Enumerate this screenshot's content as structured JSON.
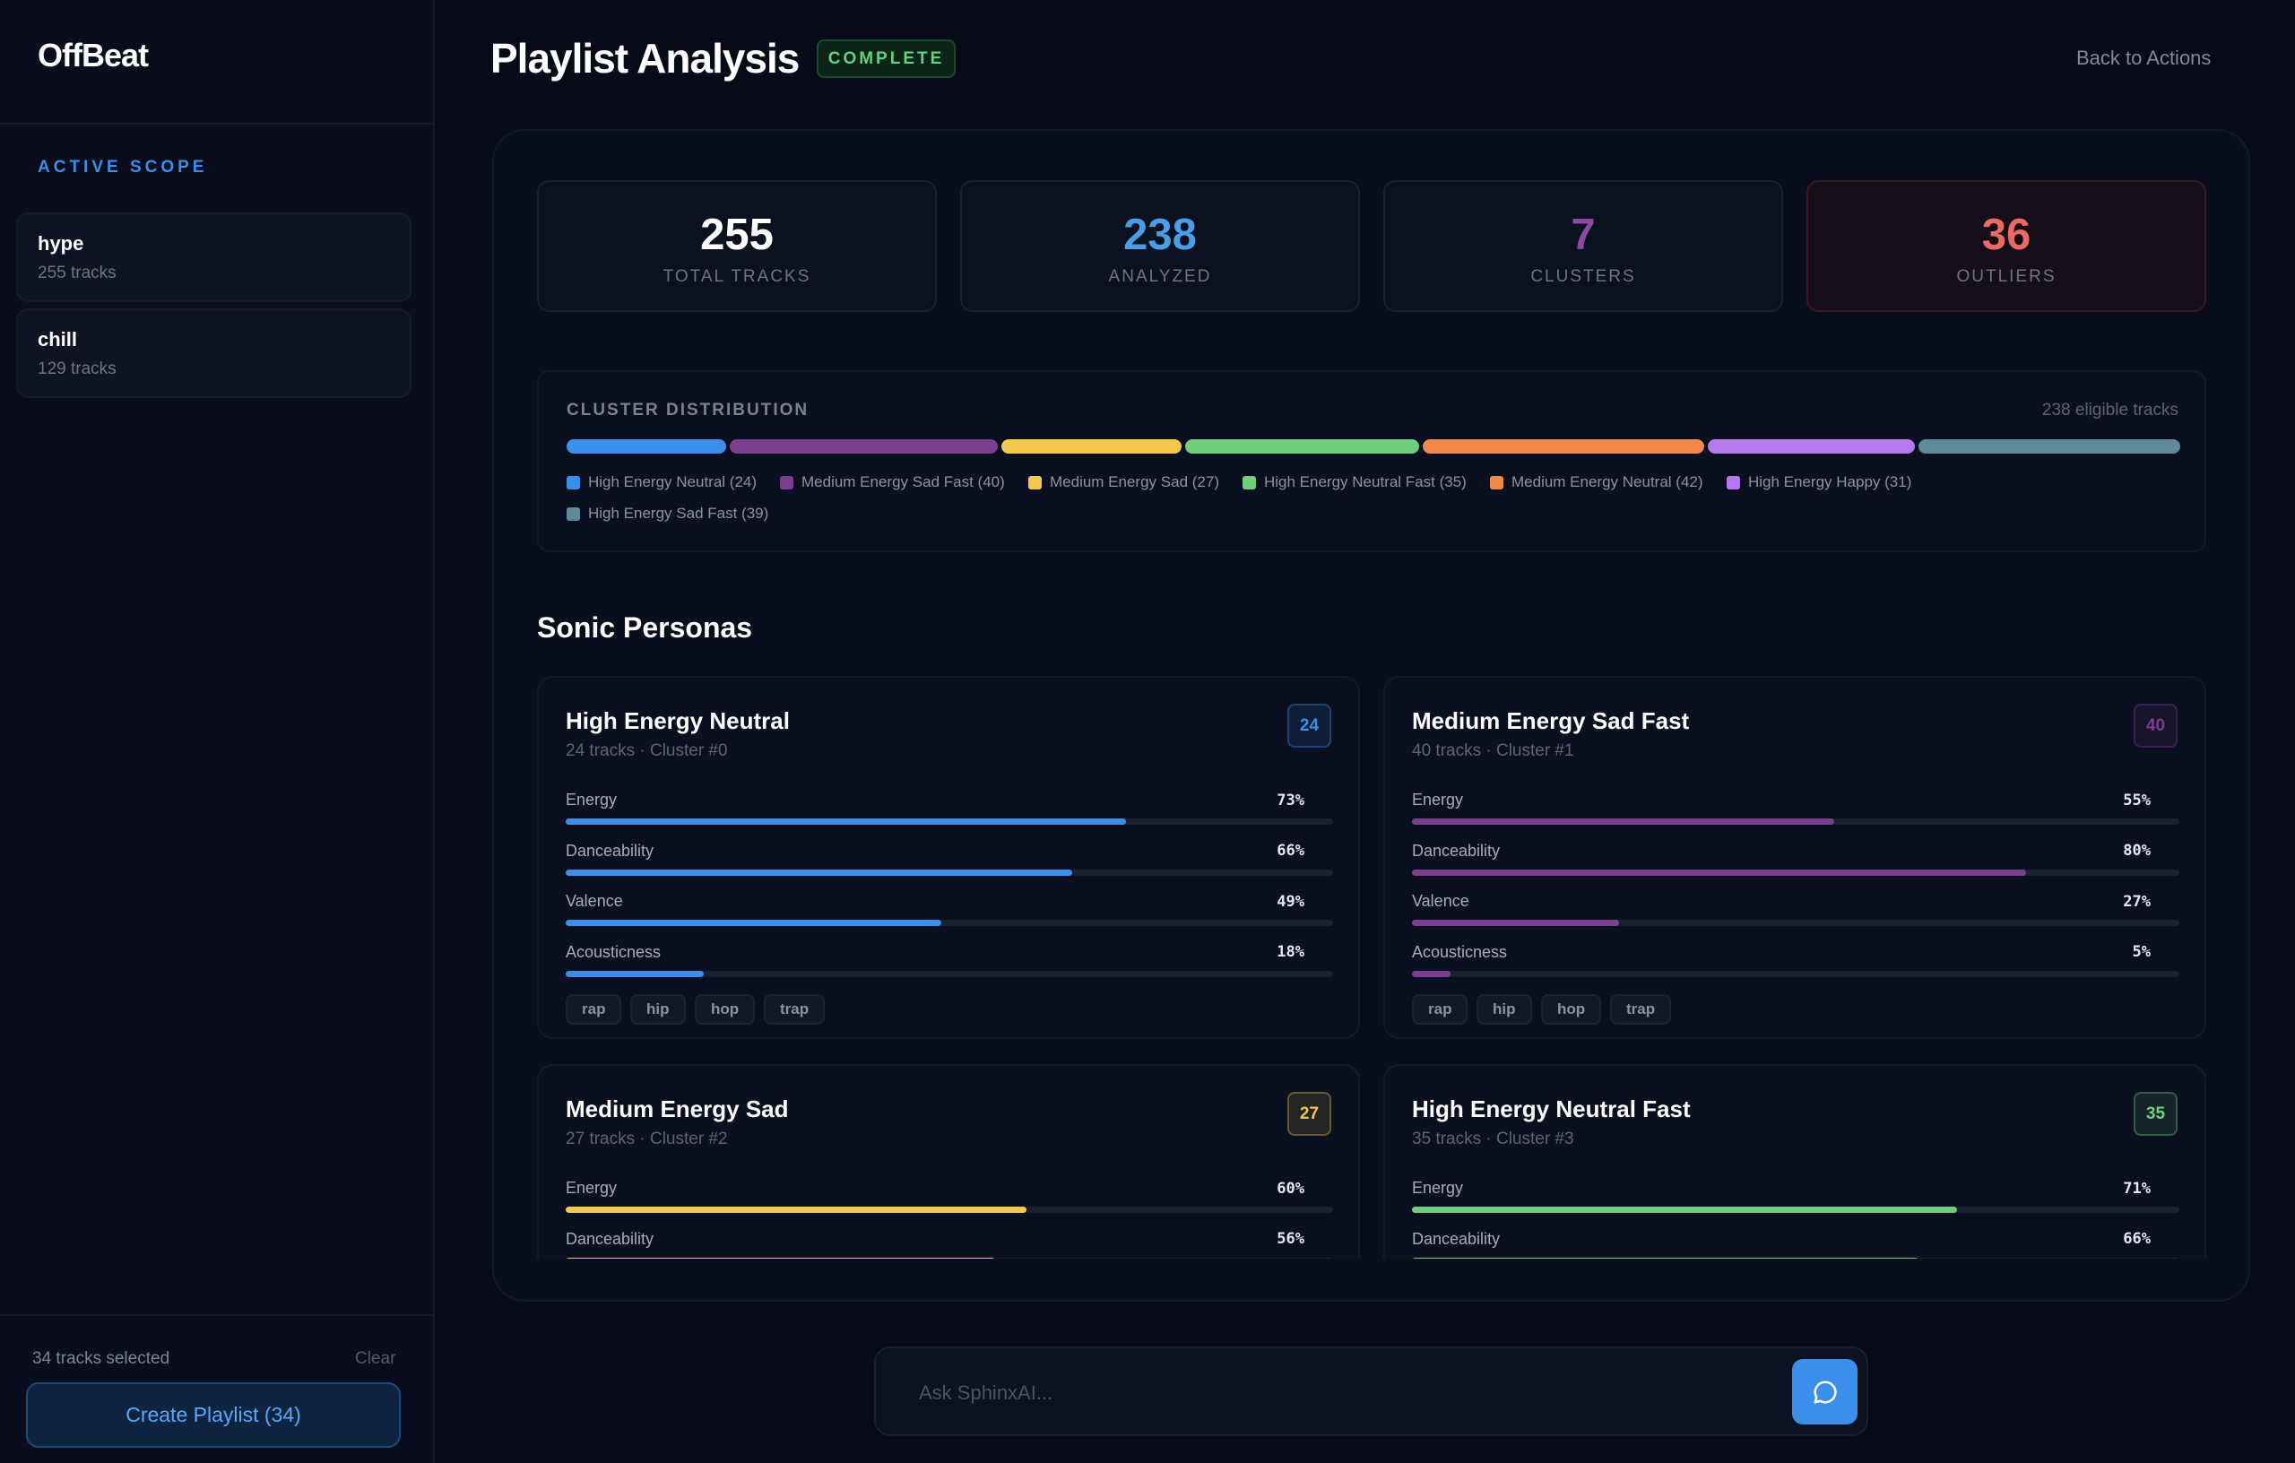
{
  "sidebar": {
    "brand": "OffBeat",
    "scope_label": "ACTIVE SCOPE",
    "scopes": [
      {
        "name": "hype",
        "tracks": "255 tracks"
      },
      {
        "name": "chill",
        "tracks": "129 tracks"
      }
    ],
    "selected": "34 tracks selected",
    "clear": "Clear",
    "create_button": "Create Playlist (34)"
  },
  "header": {
    "title": "Playlist Analysis",
    "status": "COMPLETE",
    "back": "Back to Actions"
  },
  "stats": [
    {
      "value": 255,
      "label": "TOTAL TRACKS",
      "color": "#ffffff"
    },
    {
      "value": 238,
      "label": "ANALYZED",
      "color": "#4a9ee8"
    },
    {
      "value": 7,
      "label": "CLUSTERS",
      "color": "#8a4a9e"
    },
    {
      "value": 36,
      "label": "OUTLIERS",
      "color": "#ea6a66"
    }
  ],
  "distribution": {
    "title": "CLUSTER DISTRIBUTION",
    "note": "238 eligible tracks",
    "clusters": [
      {
        "label": "High Energy Neutral (24)",
        "value": 24,
        "color": "#3b8eea"
      },
      {
        "label": "Medium Energy Sad Fast (40)",
        "value": 40,
        "color": "#7b3f8f"
      },
      {
        "label": "Medium Energy Sad (27)",
        "value": 27,
        "color": "#f2c94c"
      },
      {
        "label": "High Energy Neutral Fast (35)",
        "value": 35,
        "color": "#6fcf7f"
      },
      {
        "label": "Medium Energy Neutral (42)",
        "value": 42,
        "color": "#f0894a"
      },
      {
        "label": "High Energy Happy (31)",
        "value": 31,
        "color": "#b57bee"
      },
      {
        "label": "High Energy Sad Fast (39)",
        "value": 39,
        "color": "#5f8a9c"
      }
    ]
  },
  "personas": {
    "title": "Sonic Personas",
    "range": [
      0,
      100
    ],
    "cards": [
      {
        "name": "High Energy Neutral",
        "subtitle": "24 tracks · Cluster #0",
        "count": 24,
        "color": "#3b8eea",
        "features": [
          {
            "name": "Energy",
            "value": 73,
            "label": "73%"
          },
          {
            "name": "Danceability",
            "value": 66,
            "label": "66%"
          },
          {
            "name": "Valence",
            "value": 49,
            "label": "49%"
          },
          {
            "name": "Acousticness",
            "value": 18,
            "label": "18%"
          }
        ],
        "tags": [
          "rap",
          "hip",
          "hop",
          "trap"
        ]
      },
      {
        "name": "Medium Energy Sad Fast",
        "subtitle": "40 tracks · Cluster #1",
        "count": 40,
        "color": "#7b3f8f",
        "features": [
          {
            "name": "Energy",
            "value": 55,
            "label": "55%"
          },
          {
            "name": "Danceability",
            "value": 80,
            "label": "80%"
          },
          {
            "name": "Valence",
            "value": 27,
            "label": "27%"
          },
          {
            "name": "Acousticness",
            "value": 5,
            "label": "5%"
          }
        ],
        "tags": [
          "rap",
          "hip",
          "hop",
          "trap"
        ]
      },
      {
        "name": "Medium Energy Sad",
        "subtitle": "27 tracks · Cluster #2",
        "count": 27,
        "color": "#f2c94c",
        "features": [
          {
            "name": "Energy",
            "value": 60,
            "label": "60%"
          },
          {
            "name": "Danceability",
            "value": 56,
            "label": "56%"
          }
        ],
        "tags": []
      },
      {
        "name": "High Energy Neutral Fast",
        "subtitle": "35 tracks · Cluster #3",
        "count": 35,
        "color": "#6fcf7f",
        "features": [
          {
            "name": "Energy",
            "value": 71,
            "label": "71%"
          },
          {
            "name": "Danceability",
            "value": 66,
            "label": "66%"
          }
        ],
        "tags": []
      }
    ]
  },
  "chat": {
    "placeholder": "Ask SphinxAI..."
  }
}
